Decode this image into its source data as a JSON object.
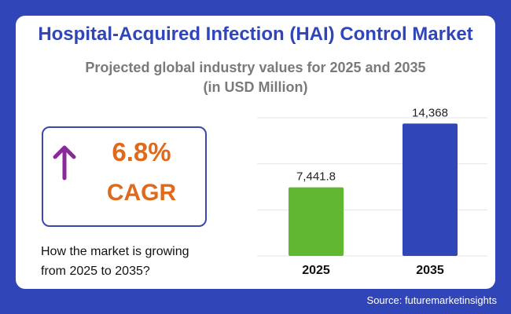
{
  "title": "Hospital-Acquired Infection (HAI) Control Market",
  "subtitle_line1": "Projected global industry values for 2025 and 2035",
  "subtitle_line2": "(in USD Million)",
  "cagr": {
    "value": "6.8%",
    "label": "CAGR",
    "icon": "arrow-up-icon",
    "icon_color": "#8a2a9a",
    "text_color": "#e06a1c"
  },
  "question_line1": "How the market is growing",
  "question_line2": "from 2025 to 2035?",
  "source": "Source: futuremarketinsights",
  "chart_data": {
    "type": "bar",
    "categories": [
      "2025",
      "2035"
    ],
    "values": [
      7441.8,
      14368
    ],
    "data_labels": [
      "7,441.8",
      "14,368"
    ],
    "colors": [
      "#5fb830",
      "#2f45b8"
    ],
    "ylim": [
      0,
      15000
    ],
    "gridlines": [
      5000,
      10000,
      15000
    ],
    "grid": true,
    "title": "",
    "xlabel": "",
    "ylabel": ""
  }
}
